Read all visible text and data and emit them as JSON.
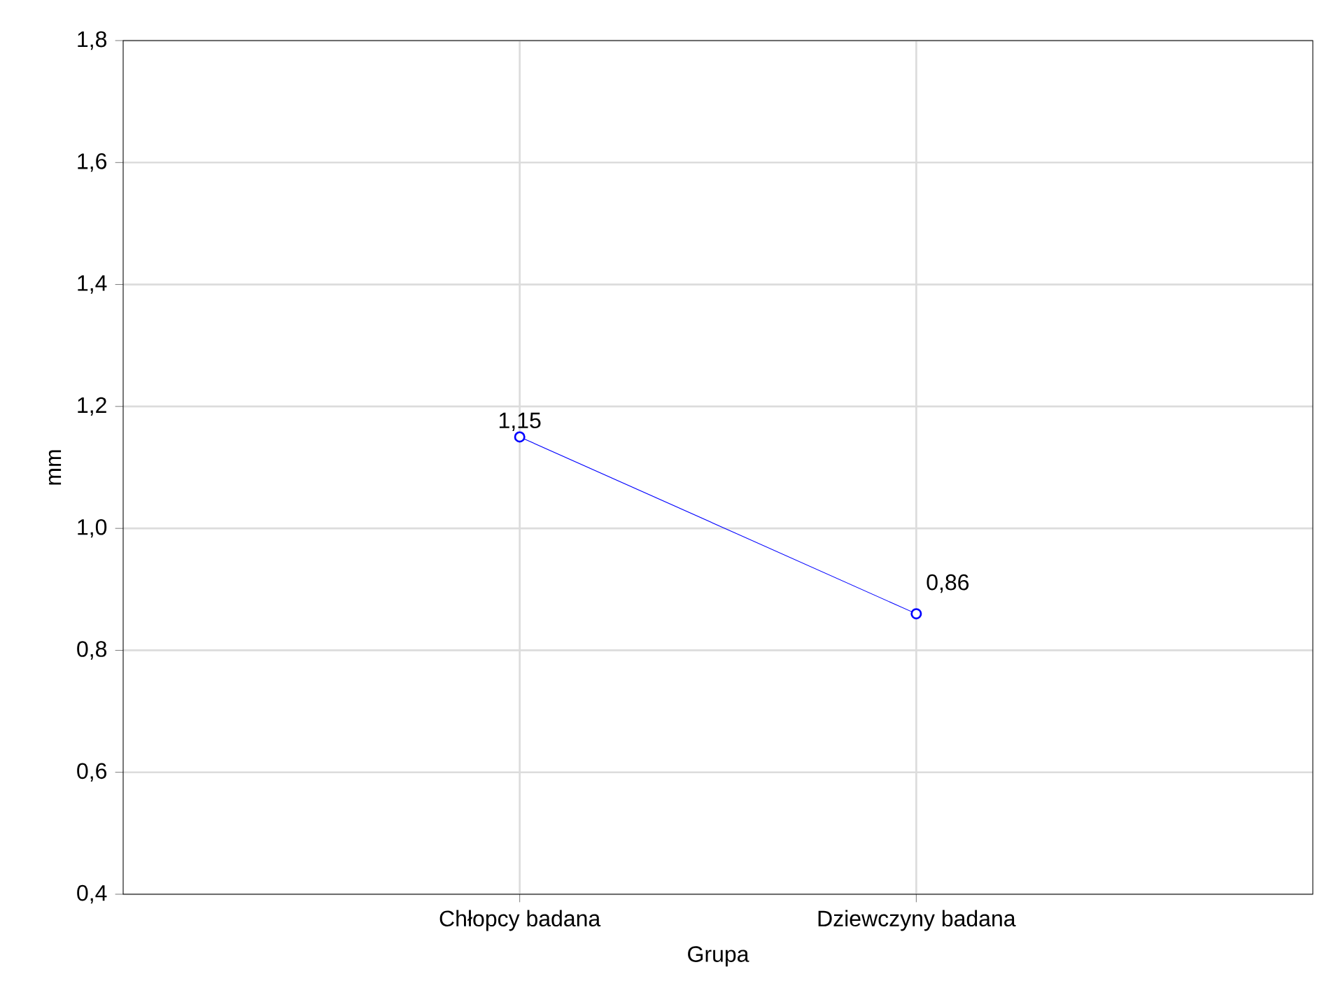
{
  "chart_data": {
    "type": "line",
    "xlabel": "Grupa",
    "ylabel": "mm",
    "categories": [
      "Chłopcy badana",
      "Dziewczyny badana"
    ],
    "series": [
      {
        "color": "#0000ff",
        "values": [
          1.15,
          0.86
        ],
        "value_labels": [
          "1,15",
          "0,86"
        ]
      }
    ],
    "ylim": [
      0.4,
      1.8
    ],
    "yticks": [
      {
        "value": 0.4,
        "label": "0,4"
      },
      {
        "value": 0.6,
        "label": "0,6"
      },
      {
        "value": 0.8,
        "label": "0,8"
      },
      {
        "value": 1.0,
        "label": "1,0"
      },
      {
        "value": 1.2,
        "label": "1,2"
      },
      {
        "value": 1.4,
        "label": "1,4"
      },
      {
        "value": 1.6,
        "label": "1,6"
      },
      {
        "value": 1.8,
        "label": "1,8"
      }
    ],
    "grid": true,
    "marker": "circle",
    "line_style": "solid"
  }
}
